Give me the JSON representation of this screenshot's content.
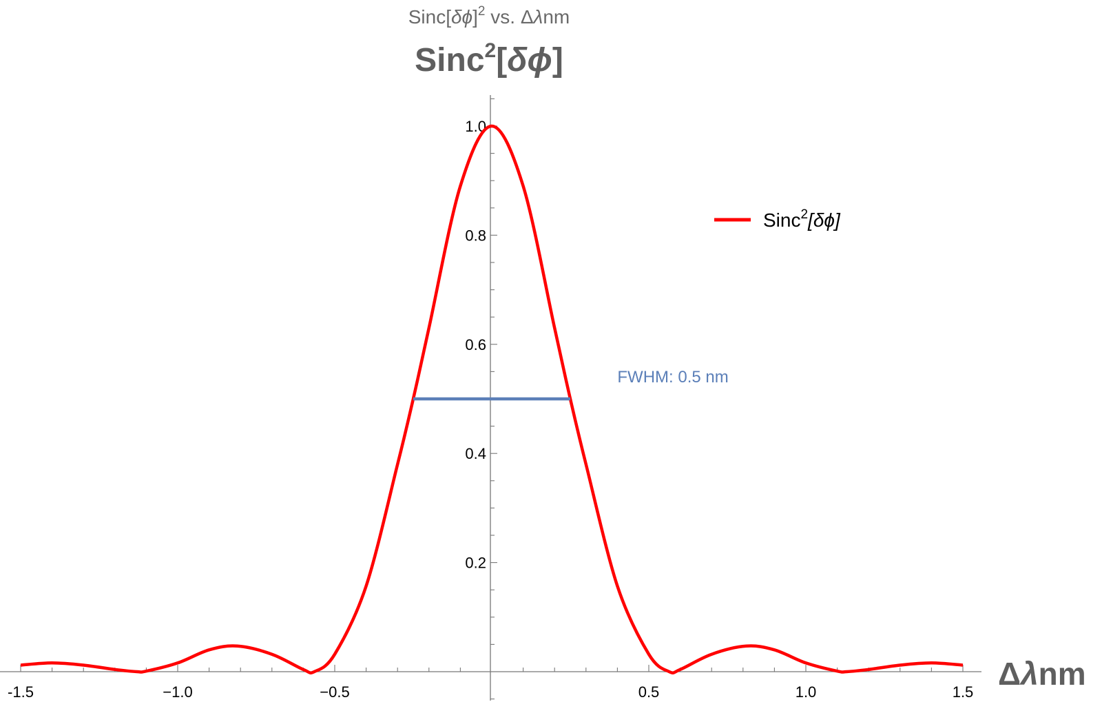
{
  "chart_data": {
    "type": "line",
    "title_sub": {
      "prefix": "Sinc[",
      "greek": "δϕ",
      "mid": "]",
      "sup": "2",
      "suffix": " vs. Δ",
      "lambda": "λ",
      "unit": "nm"
    },
    "title_main": {
      "prefix": "Sinc",
      "sup": "2",
      "bracket_open": "[",
      "greek": "δϕ",
      "bracket_close": "]"
    },
    "xlabel": {
      "delta": "Δ",
      "lambda": "λ",
      "unit": "nm"
    },
    "xlim": [
      -1.5,
      1.5
    ],
    "ylim": [
      0,
      1.05
    ],
    "x_ticks": [
      -1.5,
      -1.0,
      -0.5,
      0.5,
      1.0,
      1.5
    ],
    "x_tick_labels": [
      "-1.5",
      "−1.0",
      "−0.5",
      "0.5",
      "1.0",
      "1.5"
    ],
    "y_ticks": [
      0.2,
      0.4,
      0.6,
      0.8,
      1.0
    ],
    "y_tick_labels": [
      "0.2",
      "0.4",
      "0.6",
      "0.8",
      "1.0"
    ],
    "series": [
      {
        "name": "Sinc²[δϕ]",
        "color": "#ff0000",
        "x": [
          -1.5,
          -1.4,
          -1.3,
          -1.2,
          -1.13,
          -1.1,
          -1.0,
          -0.9,
          -0.81,
          -0.7,
          -0.6,
          -0.565,
          -0.5,
          -0.4,
          -0.3,
          -0.25,
          -0.2,
          -0.1,
          0,
          0.1,
          0.2,
          0.25,
          0.3,
          0.4,
          0.5,
          0.565,
          0.6,
          0.7,
          0.81,
          0.9,
          1.0,
          1.1,
          1.13,
          1.2,
          1.3,
          1.4,
          1.5
        ],
        "y": [
          0.012,
          0.016,
          0.012,
          0.004,
          0.0,
          0.001,
          0.016,
          0.04,
          0.047,
          0.032,
          0.004,
          0.0,
          0.032,
          0.157,
          0.38,
          0.5,
          0.63,
          0.89,
          1.0,
          0.89,
          0.63,
          0.5,
          0.38,
          0.157,
          0.032,
          0.0,
          0.004,
          0.032,
          0.047,
          0.04,
          0.016,
          0.001,
          0.0,
          0.004,
          0.012,
          0.016,
          0.012
        ]
      }
    ],
    "fwhm_line": {
      "x_start": -0.25,
      "x_end": 0.25,
      "y": 0.5,
      "color": "#5b7fb8"
    },
    "annotation": {
      "text": "FWHM: 0.5 nm",
      "x": 0.4,
      "y": 0.53
    },
    "legend": {
      "placement": "right",
      "label_prefix": "Sinc",
      "label_sup": "2",
      "label_suffix": "[δϕ]"
    },
    "grid": false
  }
}
